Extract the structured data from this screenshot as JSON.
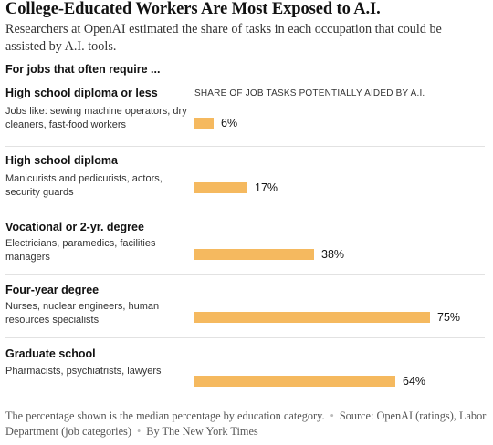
{
  "title": "College-Educated Workers Are Most Exposed to A.I.",
  "subtitle": "Researchers at OpenAI estimated the share of tasks in each occupation that could be assisted by A.I. tools.",
  "group_label": "For jobs that often require ...",
  "footer": {
    "note": "The percentage shown is the median percentage by education category.",
    "source": "Source: OpenAI (ratings), Labor Department (job categories)",
    "credit": "By The New York Times"
  },
  "colors": {
    "bar": "#f5b95f",
    "divider": "#e2e2e2"
  },
  "chart_data": {
    "type": "bar",
    "orientation": "horizontal",
    "xlabel": "SHARE OF JOB TASKS POTENTIALLY AIDED BY A.I.",
    "xlim": [
      0,
      100
    ],
    "grid": false,
    "categories": [
      "High school diploma or less",
      "High school diploma",
      "Vocational or 2-yr. degree",
      "Four-year degree",
      "Graduate school"
    ],
    "descriptions": [
      "Jobs like: sewing machine operators, dry cleaners, fast-food workers",
      "Manicurists and pedicurists, actors, security guards",
      "Electricians, paramedics, facilities managers",
      "Nurses, nuclear engineers, human resources specialists",
      "Pharmacists, psychiatrists, lawyers"
    ],
    "values": [
      6,
      17,
      38,
      75,
      64
    ],
    "value_labels": [
      "6%",
      "17%",
      "38%",
      "75%",
      "64%"
    ]
  }
}
